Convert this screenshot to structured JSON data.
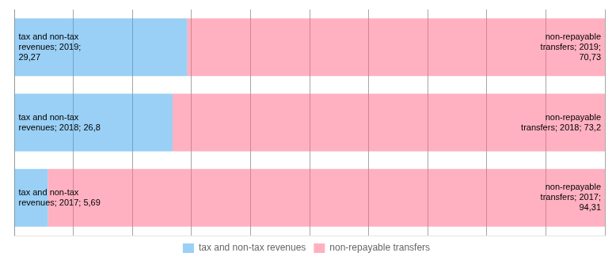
{
  "chart_data": {
    "type": "bar",
    "orientation": "horizontal",
    "stacked": true,
    "categories": [
      null,
      null,
      null
    ],
    "series": [
      {
        "name": "tax and non-tax revenues",
        "values": [
          5.69,
          26.8,
          29.27
        ],
        "value_labels": [
          "tax and non-tax\nrevenues; 2017; 5,69",
          "tax and non-tax\nrevenues; 2018; 26,8",
          "tax and non-tax\nrevenues; 2019;\n29,27"
        ]
      },
      {
        "name": "non-repayable transfers",
        "values": [
          94.31,
          73.2,
          70.73
        ],
        "value_labels": [
          "non-repayable\ntransfers; 2017;\n94,31",
          "non-repayable\ntransfers; 2018; 73,2",
          "non-repayable\ntransfers; 2019;\n70,73"
        ]
      }
    ],
    "xlim": [
      0,
      100
    ],
    "xticks": [
      0,
      10,
      20,
      30,
      40,
      50,
      60,
      70,
      80,
      90,
      100
    ],
    "grid": true,
    "tick_labels": false,
    "legend": "bottom",
    "data_labels": true
  }
}
